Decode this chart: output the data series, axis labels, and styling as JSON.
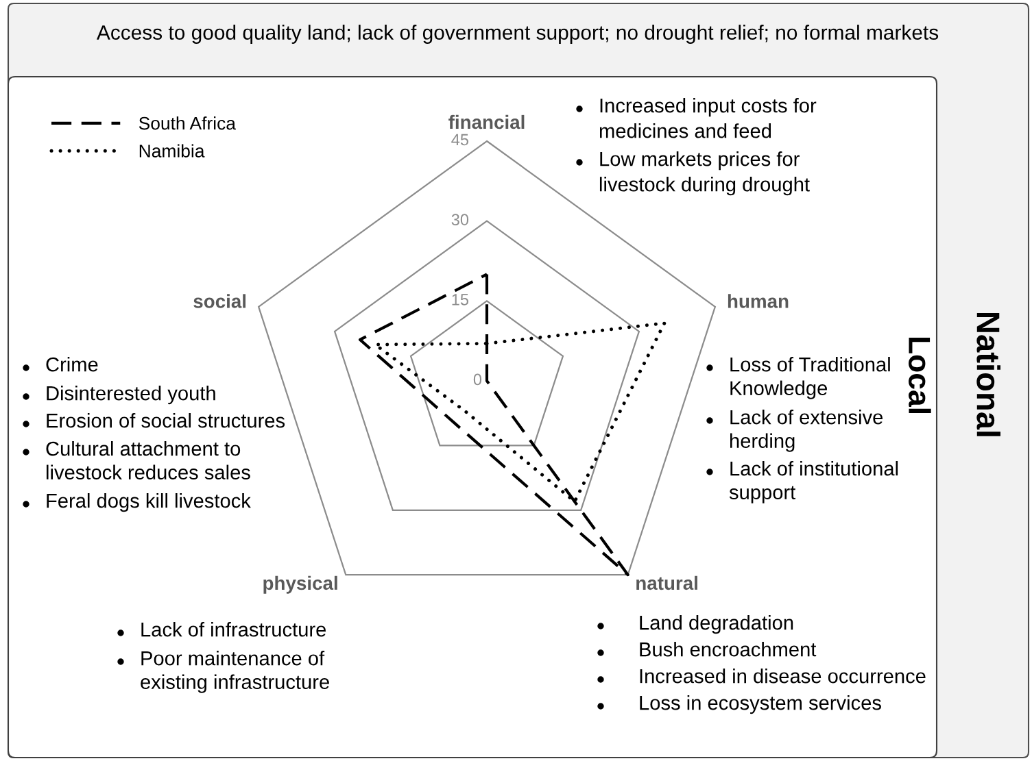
{
  "chart_data": {
    "type": "radar",
    "categories": [
      "financial",
      "human",
      "natural",
      "physical",
      "social"
    ],
    "series": [
      {
        "name": "South Africa",
        "color": "#000000",
        "line_style": "dashed",
        "values": [
          20,
          0,
          45,
          10,
          25
        ]
      },
      {
        "name": "Namibia",
        "color": "#000000",
        "line_style": "dotted",
        "values": [
          7,
          35,
          28,
          7,
          22
        ]
      }
    ],
    "ylim": [
      0,
      45
    ],
    "yticks": [
      0,
      15,
      30,
      45
    ],
    "grid": true,
    "legend": "top left",
    "annotations": [
      "Access to good quality land; lack of government support; no drought relief; no formal markets",
      "Increased input costs for\nmedicines and feed",
      "Low markets prices for\nlivestock during drought",
      "Loss of Traditional\nKnowledge",
      "Lack of extensive\nherding",
      "Lack of institutional\nsupport",
      "Land degradation",
      "Bush encroachment",
      "Increased in disease occurrence",
      "Loss in ecosystem services",
      "Lack of infrastructure",
      "Poor maintenance of\nexisting infrastructure",
      "Crime",
      "Disinterested youth",
      "Erosion of social structures",
      "Cultural attachment to\nlivestock reduces sales",
      "Feral dogs kill livestock",
      "Local",
      "National"
    ]
  }
}
